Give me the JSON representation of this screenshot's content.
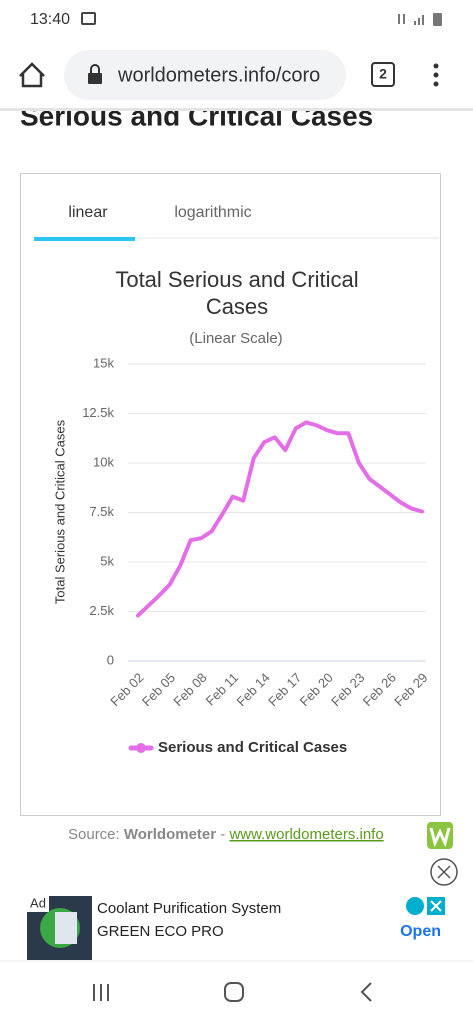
{
  "status_bar": {
    "time": "13:40"
  },
  "browser": {
    "url": "worldometers.info/coro",
    "tab_count": "2"
  },
  "heading": "Serious and Critical Cases",
  "tabs": [
    "linear",
    "logarithmic"
  ],
  "chart_data": {
    "type": "line",
    "title": "Total Serious and Critical Cases",
    "subtitle": "(Linear Scale)",
    "y_label": "Total Serious and Critical Cases",
    "categories": [
      "Feb 02",
      null,
      null,
      "Feb 05",
      null,
      null,
      "Feb 08",
      null,
      null,
      "Feb 11",
      null,
      null,
      "Feb 14",
      null,
      null,
      "Feb 17",
      null,
      null,
      "Feb 20",
      null,
      null,
      "Feb 23",
      null,
      null,
      "Feb 26",
      null,
      null,
      "Feb 29"
    ],
    "series": [
      {
        "name": "Serious and Critical Cases",
        "color": "#e36ee8",
        "values": [
          2300,
          2800,
          3300,
          3850,
          4800,
          6100,
          6200,
          6550,
          7400,
          8300,
          8100,
          10250,
          11050,
          11300,
          10650,
          11750,
          12050,
          11900,
          11650,
          11500,
          11500,
          10000,
          9200,
          8800,
          8400,
          8000,
          7700,
          7550
        ]
      }
    ],
    "ylim": [
      0,
      15000
    ],
    "yticks": [
      0,
      {
        "value": 2500,
        "label": "2.5k"
      },
      {
        "value": 5000,
        "label": "5k"
      },
      {
        "value": 7500,
        "label": "7.5k"
      },
      {
        "value": 10000,
        "label": "10k"
      },
      {
        "value": 12500,
        "label": "12.5k"
      },
      {
        "value": 15000,
        "label": "15k"
      }
    ],
    "grid": true
  },
  "source": {
    "label": "Source:",
    "name": "Worldometer",
    "separator": "-",
    "link": "www.worldometers.info"
  },
  "ad": {
    "badge": "Ad",
    "line1": "Coolant Purification System",
    "line2": "GREEN ECO PRO",
    "action": "Open"
  }
}
